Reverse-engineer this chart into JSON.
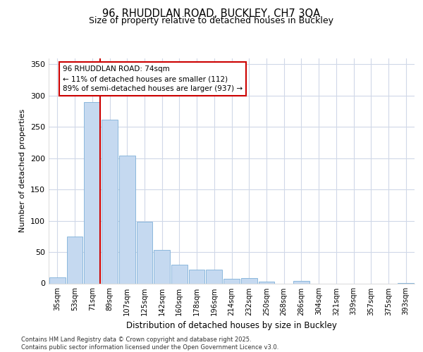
{
  "title_line1": "96, RHUDDLAN ROAD, BUCKLEY, CH7 3QA",
  "title_line2": "Size of property relative to detached houses in Buckley",
  "xlabel": "Distribution of detached houses by size in Buckley",
  "ylabel": "Number of detached properties",
  "bar_color": "#c5d9f0",
  "bar_edge_color": "#7eb0d8",
  "grid_color": "#d0d8e8",
  "bg_color": "#ffffff",
  "categories": [
    "35sqm",
    "53sqm",
    "71sqm",
    "89sqm",
    "107sqm",
    "125sqm",
    "142sqm",
    "160sqm",
    "178sqm",
    "196sqm",
    "214sqm",
    "232sqm",
    "250sqm",
    "268sqm",
    "286sqm",
    "304sqm",
    "321sqm",
    "339sqm",
    "357sqm",
    "375sqm",
    "393sqm"
  ],
  "values": [
    10,
    75,
    290,
    262,
    204,
    98,
    53,
    30,
    22,
    22,
    7,
    8,
    3,
    0,
    4,
    0,
    0,
    0,
    0,
    0,
    1
  ],
  "ylim": [
    0,
    360
  ],
  "yticks": [
    0,
    50,
    100,
    150,
    200,
    250,
    300,
    350
  ],
  "property_bin_index": 2,
  "annotation_title": "96 RHUDDLAN ROAD: 74sqm",
  "annotation_line2": "← 11% of detached houses are smaller (112)",
  "annotation_line3": "89% of semi-detached houses are larger (937) →",
  "annotation_box_color": "#ffffff",
  "annotation_border_color": "#cc0000",
  "red_line_color": "#cc0000",
  "footer_line1": "Contains HM Land Registry data © Crown copyright and database right 2025.",
  "footer_line2": "Contains public sector information licensed under the Open Government Licence v3.0."
}
